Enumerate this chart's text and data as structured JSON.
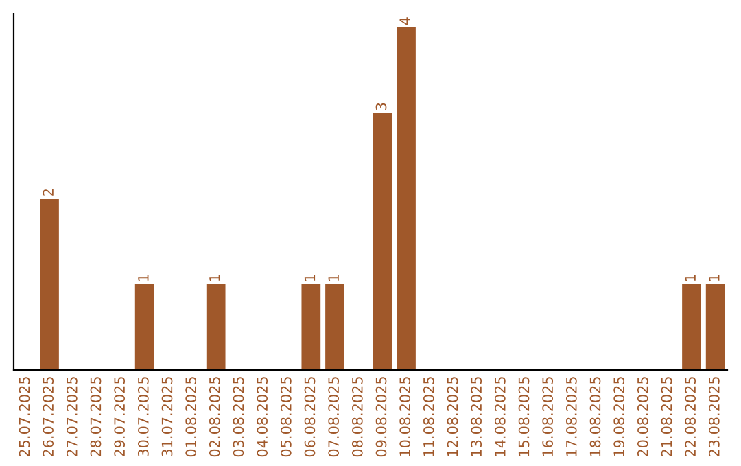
{
  "chart_data": {
    "type": "bar",
    "categories": [
      "25.07.2025",
      "26.07.2025",
      "27.07.2025",
      "28.07.2025",
      "29.07.2025",
      "30.07.2025",
      "31.07.2025",
      "01.08.2025",
      "02.08.2025",
      "03.08.2025",
      "04.08.2025",
      "05.08.2025",
      "06.08.2025",
      "07.08.2025",
      "08.08.2025",
      "09.08.2025",
      "10.08.2025",
      "11.08.2025",
      "12.08.2025",
      "13.08.2025",
      "14.08.2025",
      "15.08.2025",
      "16.08.2025",
      "17.08.2025",
      "18.08.2025",
      "19.08.2025",
      "20.08.2025",
      "21.08.2025",
      "22.08.2025",
      "23.08.2025"
    ],
    "values": [
      0,
      2,
      0,
      0,
      0,
      1,
      0,
      0,
      1,
      0,
      0,
      0,
      1,
      1,
      0,
      3,
      4,
      0,
      0,
      0,
      0,
      0,
      0,
      0,
      0,
      0,
      0,
      0,
      1,
      1
    ],
    "value_labels": [
      null,
      "2",
      null,
      null,
      null,
      "1",
      null,
      null,
      "1",
      null,
      null,
      null,
      "1",
      "1",
      null,
      "3",
      "4",
      null,
      null,
      null,
      null,
      null,
      null,
      null,
      null,
      null,
      null,
      null,
      "1",
      "1"
    ],
    "color": "#a0582a",
    "ylim": [
      0,
      4.16
    ],
    "tick_labels": "x",
    "grid": false,
    "legend": false
  }
}
